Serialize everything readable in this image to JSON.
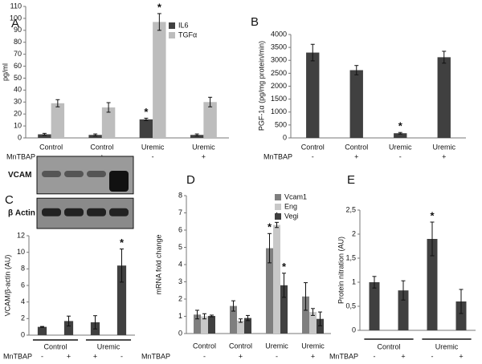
{
  "chart_data": [
    {
      "panel": "A",
      "type": "bar",
      "ylabel": "pg/ml",
      "categories": [
        "Control",
        "Control",
        "Uremic",
        "Uremic"
      ],
      "treatment": {
        "label": "MnTBAP",
        "values": [
          "-",
          "+",
          "-",
          "+"
        ]
      },
      "series": [
        {
          "name": "IL6",
          "color": "#404040",
          "values": [
            3,
            2.5,
            15.5,
            2.5
          ],
          "errors": [
            0.8,
            0.8,
            1,
            0.8
          ],
          "markers": [
            null,
            null,
            "*",
            null
          ]
        },
        {
          "name": "TGFα",
          "color": "#bdbdbd",
          "values": [
            29,
            25.5,
            97,
            30
          ],
          "errors": [
            3,
            4,
            7,
            4
          ],
          "markers": [
            null,
            null,
            "*",
            null
          ]
        }
      ],
      "ylim": [
        0,
        110
      ],
      "yticks": [
        0,
        10,
        20,
        30,
        40,
        50,
        60,
        70,
        80,
        90,
        100,
        110
      ]
    },
    {
      "panel": "B",
      "type": "bar",
      "ylabel": "PGF-1α (pg/mg protein/min)",
      "categories": [
        "Control",
        "Control",
        "Uremic",
        "Uremic"
      ],
      "treatment": {
        "label": "MnTBAP",
        "values": [
          "-",
          "+",
          "-",
          "+"
        ]
      },
      "series": [
        {
          "color": "#404040",
          "values": [
            3300,
            2620,
            180,
            3120
          ],
          "errors": [
            320,
            180,
            30,
            230
          ],
          "markers": [
            null,
            null,
            "*",
            null
          ]
        }
      ],
      "ylim": [
        0,
        4000
      ],
      "yticks": [
        0,
        500,
        1000,
        1500,
        2000,
        2500,
        3000,
        3500,
        4000
      ]
    },
    {
      "panel": "C",
      "type": "bar",
      "ylabel": "VCAM/β-actin (AU)",
      "blot": {
        "labels": [
          "VCAM",
          "β Actin"
        ]
      },
      "groups": [
        "Control",
        "Uremic"
      ],
      "treatment": {
        "label": "MnTBAP",
        "values": [
          "-",
          "+",
          "+",
          "-"
        ]
      },
      "series": [
        {
          "color": "#404040",
          "values": [
            1,
            1.7,
            1.55,
            8.4
          ],
          "errors": [
            0.05,
            0.6,
            0.8,
            2
          ],
          "markers": [
            null,
            null,
            null,
            "*"
          ]
        }
      ],
      "ylim": [
        0,
        12
      ],
      "yticks": [
        0,
        2,
        4,
        6,
        8,
        10,
        12
      ]
    },
    {
      "panel": "D",
      "type": "bar",
      "ylabel": "mRNA  fold change",
      "categories": [
        "Control",
        "Control",
        "Uremic",
        "Uremic"
      ],
      "treatment": {
        "label": "MnTBAP",
        "values": [
          "-",
          "+",
          "-",
          "+"
        ]
      },
      "series": [
        {
          "name": "Vcam1",
          "color": "#7f7f7f",
          "values": [
            1.1,
            1.6,
            4.95,
            2.15
          ],
          "errors": [
            0.25,
            0.3,
            0.85,
            0.8
          ],
          "markers": [
            null,
            null,
            "*",
            null
          ]
        },
        {
          "name": "Eng",
          "color": "#c8c8c8",
          "values": [
            1.0,
            0.75,
            6.3,
            1.25
          ],
          "errors": [
            0.15,
            0.1,
            0.15,
            0.2
          ],
          "markers": [
            null,
            null,
            "*",
            null
          ]
        },
        {
          "name": "Vegi",
          "color": "#404040",
          "values": [
            1.02,
            0.9,
            2.8,
            0.85
          ],
          "errors": [
            0.05,
            0.15,
            0.7,
            0.4
          ],
          "markers": [
            null,
            null,
            "*",
            null
          ]
        }
      ],
      "ylim": [
        0,
        8
      ],
      "yticks": [
        0,
        1,
        2,
        3,
        4,
        5,
        6,
        7,
        8
      ]
    },
    {
      "panel": "E",
      "type": "bar",
      "ylabel": "Protein nitration (AU)",
      "groups": [
        "Control",
        "Uremic"
      ],
      "treatment": {
        "label": "MnTBAP",
        "values": [
          "-",
          "+",
          "-",
          "+"
        ]
      },
      "series": [
        {
          "color": "#404040",
          "values": [
            1.0,
            0.83,
            1.9,
            0.6
          ],
          "errors": [
            0.12,
            0.2,
            0.35,
            0.25
          ],
          "markers": [
            null,
            null,
            "*",
            null
          ]
        }
      ],
      "ylim": [
        0,
        2.5
      ],
      "yticks": [
        0,
        {
          "value": 0.5,
          "label": "0,5"
        },
        1,
        {
          "value": 1.5,
          "label": "1,5"
        },
        2,
        {
          "value": 2.5,
          "label": "2,5"
        }
      ]
    }
  ]
}
